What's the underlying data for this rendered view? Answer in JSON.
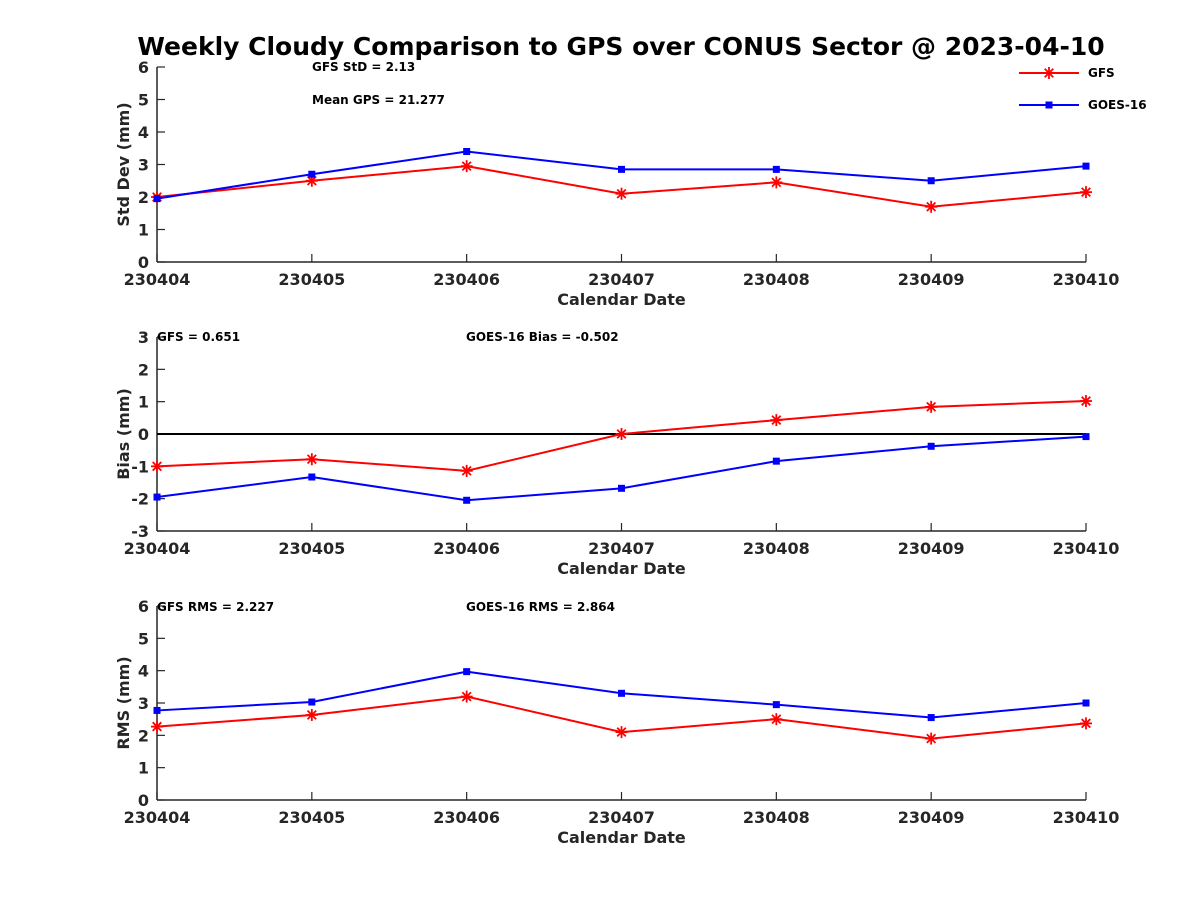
{
  "figure_title": "Weekly Cloudy Comparison to GPS over CONUS Sector @ 2023-04-10",
  "colors": {
    "gfs": "#ff0000",
    "goes16": "#0000ff",
    "axis": "#262626",
    "zero_line": "#000000"
  },
  "chart_data": [
    {
      "type": "line",
      "categories": [
        "230404",
        "230405",
        "230406",
        "230407",
        "230408",
        "230409",
        "230410"
      ],
      "xlabel": "Calendar Date",
      "ylabel": "Std Dev (mm)",
      "ylim": [
        0,
        6
      ],
      "yticks": [
        0,
        1,
        2,
        3,
        4,
        5,
        6
      ],
      "grid": false,
      "legend": "top-right",
      "annotations": [
        "GFS StD = 2.13",
        "Mean GPS = 21.277"
      ],
      "series": [
        {
          "name": "GFS",
          "color": "#ff0000",
          "marker": "asterisk",
          "values": [
            2.0,
            2.5,
            2.95,
            2.1,
            2.45,
            1.7,
            2.15
          ]
        },
        {
          "name": "GOES-16",
          "color": "#0000ff",
          "marker": "square",
          "values": [
            1.95,
            2.7,
            3.4,
            2.85,
            2.85,
            2.5,
            2.95
          ]
        }
      ]
    },
    {
      "type": "line",
      "categories": [
        "230404",
        "230405",
        "230406",
        "230407",
        "230408",
        "230409",
        "230410"
      ],
      "xlabel": "Calendar Date",
      "ylabel": "Bias (mm)",
      "ylim": [
        -3,
        3
      ],
      "yticks": [
        -3,
        -2,
        -1,
        0,
        1,
        2,
        3
      ],
      "grid": false,
      "reference_line": 0,
      "annotations": [
        "GFS = 0.651",
        "GOES-16 Bias  = -0.502"
      ],
      "series": [
        {
          "color": "#ff0000",
          "marker": "asterisk",
          "values": [
            -1.0,
            -0.78,
            -1.14,
            0.0,
            0.43,
            0.84,
            1.02
          ]
        },
        {
          "color": "#0000ff",
          "marker": "square",
          "values": [
            -1.95,
            -1.33,
            -2.05,
            -1.68,
            -0.84,
            -0.38,
            -0.08
          ]
        }
      ]
    },
    {
      "type": "line",
      "categories": [
        "230404",
        "230405",
        "230406",
        "230407",
        "230408",
        "230409",
        "230410"
      ],
      "xlabel": "Calendar Date",
      "ylabel": "RMS (mm)",
      "ylim": [
        0,
        6
      ],
      "yticks": [
        0,
        1,
        2,
        3,
        4,
        5,
        6
      ],
      "grid": false,
      "annotations": [
        "GFS RMS = 2.227",
        "GOES-16 RMS = 2.864"
      ],
      "series": [
        {
          "color": "#ff0000",
          "marker": "asterisk",
          "values": [
            2.27,
            2.63,
            3.2,
            2.1,
            2.5,
            1.9,
            2.37
          ]
        },
        {
          "color": "#0000ff",
          "marker": "square",
          "values": [
            2.77,
            3.03,
            3.97,
            3.3,
            2.95,
            2.55,
            3.0
          ]
        }
      ]
    }
  ]
}
